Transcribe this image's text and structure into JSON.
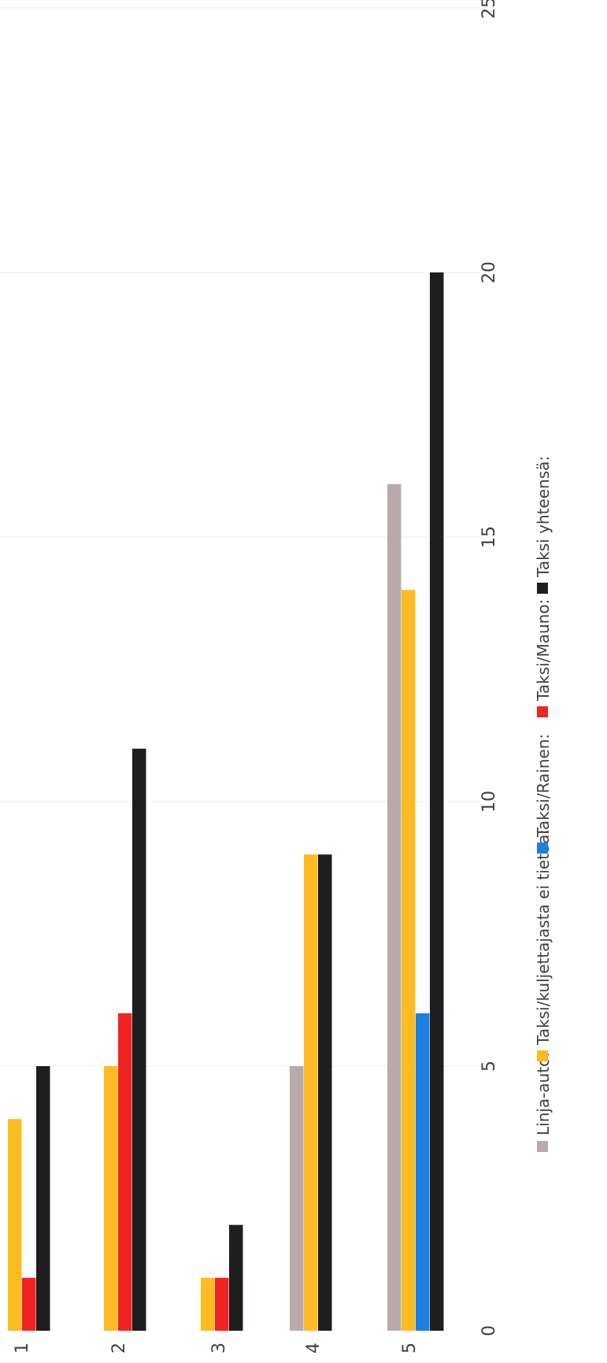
{
  "chart_data": {
    "type": "bar",
    "orientation": "horizontal",
    "categories": [
      "1",
      "2",
      "3",
      "4",
      "5"
    ],
    "xticks": [
      "0",
      "5",
      "10",
      "15",
      "20",
      "25"
    ],
    "xlim": [
      0,
      25
    ],
    "grid": true,
    "legend": "bottom",
    "series": [
      {
        "name": "Linja-auto:",
        "color": "#b8aaaa",
        "values": [
          0,
          0,
          0,
          5,
          16
        ]
      },
      {
        "name": "Taksi/kuljettajasta ei tietoa:",
        "color": "#ffbb22",
        "values": [
          4,
          5,
          1,
          9,
          14
        ]
      },
      {
        "name": "Taksi/Rainen:",
        "color": "#1e7fe0",
        "values": [
          0,
          0,
          0,
          0,
          6
        ]
      },
      {
        "name": "Taksi/Mauno:",
        "color": "#ef2424",
        "values": [
          1,
          6,
          1,
          0,
          0
        ]
      },
      {
        "name": "Taksi yhteensä:",
        "color": "#1e1e1e",
        "values": [
          5,
          11,
          2,
          9,
          20
        ]
      }
    ]
  }
}
